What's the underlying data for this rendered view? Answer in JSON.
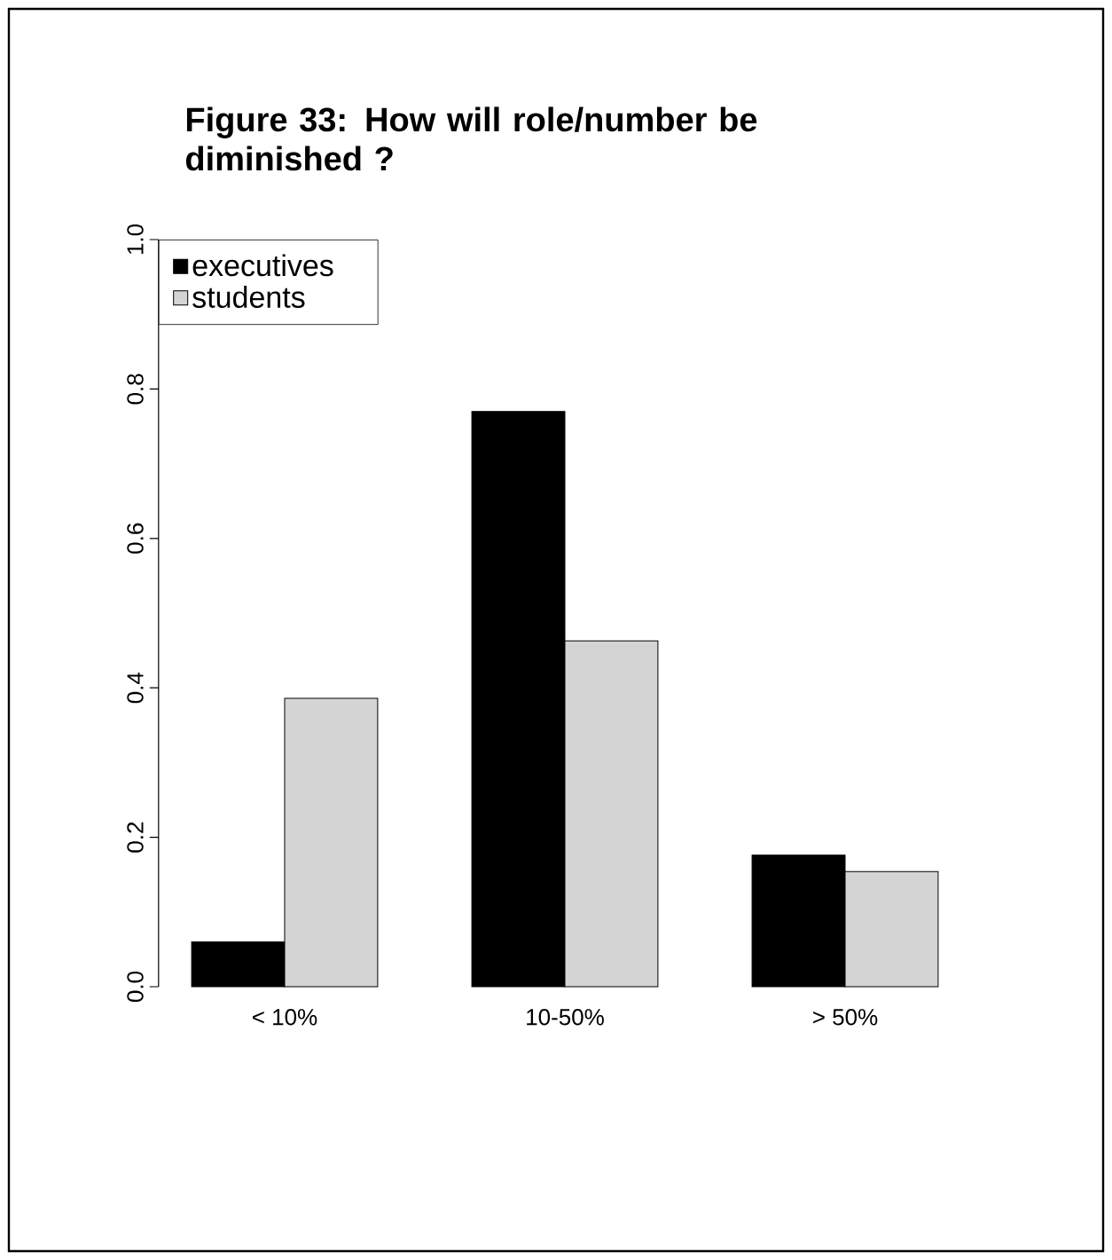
{
  "chart_data": {
    "type": "bar",
    "title": "Figure 33: How will role/number be diminished ?",
    "categories": [
      "< 10%",
      "10-50%",
      "> 50%"
    ],
    "series": [
      {
        "name": "executives",
        "color": "#000000",
        "values": [
          0.06,
          0.77,
          0.176
        ]
      },
      {
        "name": "students",
        "color": "#d4d4d4",
        "values": [
          0.386,
          0.463,
          0.154
        ]
      }
    ],
    "ylim": [
      0,
      1
    ],
    "yticks": [
      {
        "value": 0,
        "label": "0.0"
      },
      0.2,
      0.4,
      0.6,
      0.8,
      {
        "value": 1,
        "label": "1.0"
      }
    ],
    "legend": "top left"
  }
}
